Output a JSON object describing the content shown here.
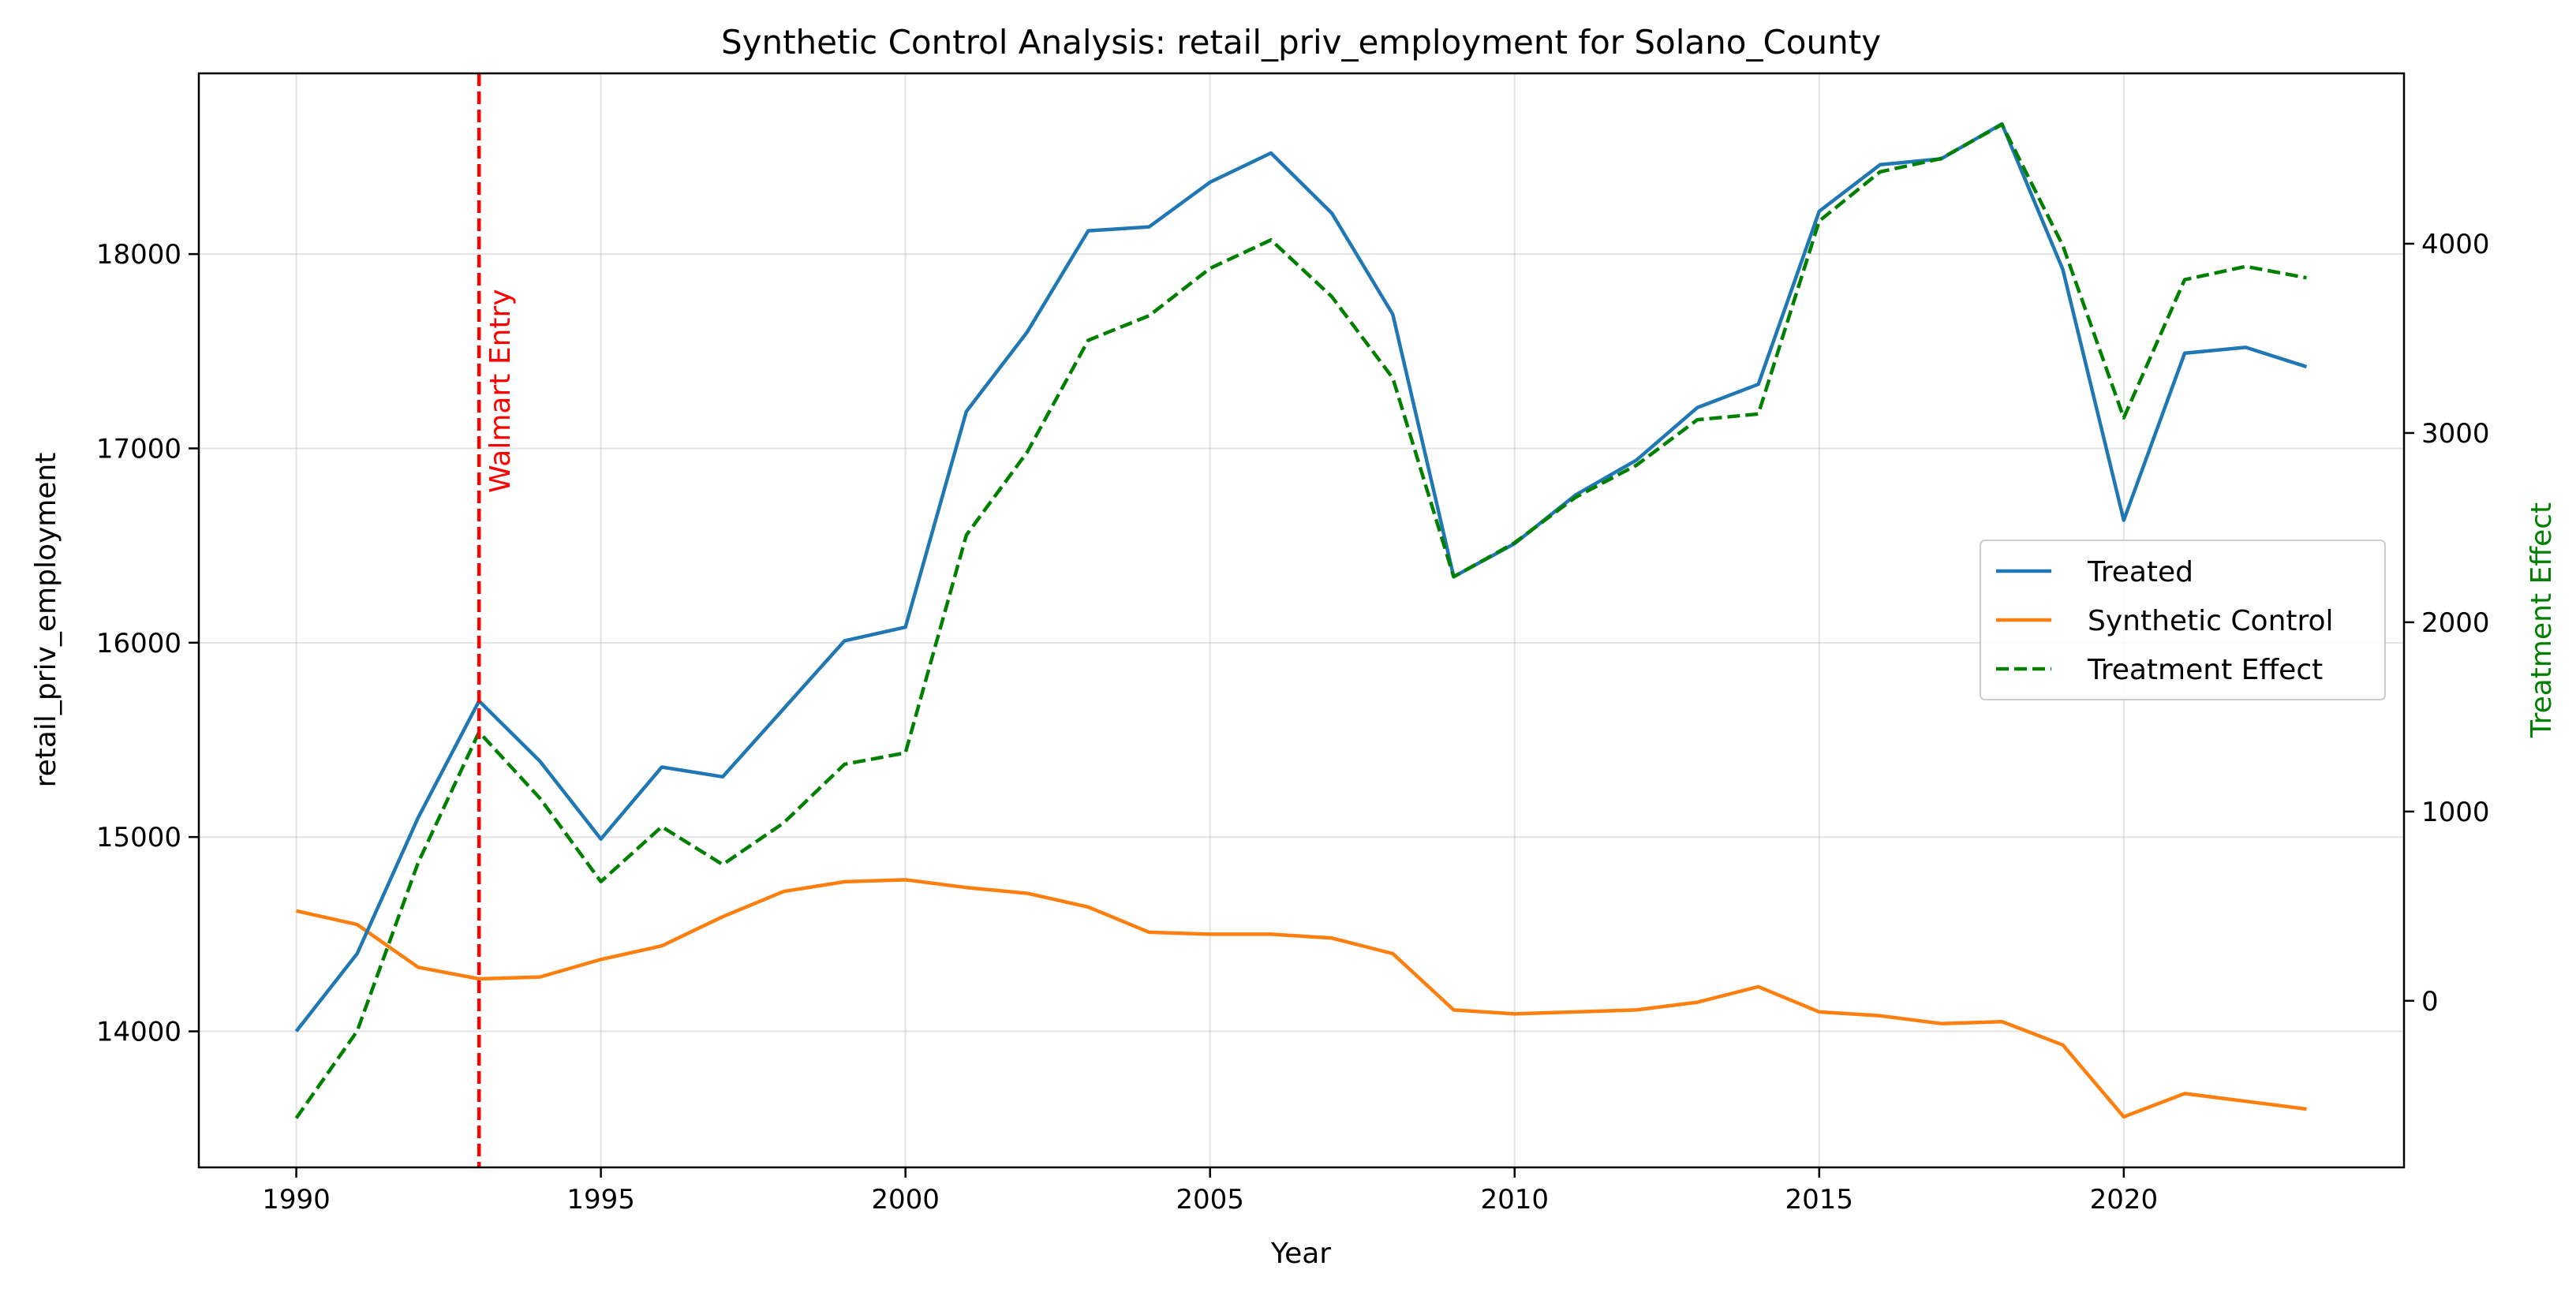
{
  "chart_data": {
    "type": "line",
    "title": "Synthetic Control Analysis: retail_priv_employment for Solano_County",
    "xlabel": "Year",
    "ylabel": "retail_priv_employment",
    "y2label": "Treatment Effect",
    "xlim": [
      1988.4,
      2024.6
    ],
    "ylim": [
      13300,
      18930
    ],
    "y2lim": [
      -880,
      4900
    ],
    "xticks": [
      1990,
      1995,
      2000,
      2005,
      2010,
      2015,
      2020
    ],
    "yticks": [
      14000,
      15000,
      16000,
      17000,
      18000
    ],
    "y2ticks": [
      0,
      1000,
      2000,
      3000,
      4000
    ],
    "grid": true,
    "legend_position": "center-right",
    "x": [
      1990,
      1991,
      1992,
      1993,
      1994,
      1995,
      1996,
      1997,
      1998,
      1999,
      2000,
      2001,
      2002,
      2003,
      2004,
      2005,
      2006,
      2007,
      2008,
      2009,
      2010,
      2011,
      2012,
      2013,
      2014,
      2015,
      2016,
      2017,
      2018,
      2019,
      2020,
      2021,
      2022,
      2023
    ],
    "series": [
      {
        "name": "Treated",
        "axis": "left",
        "style": "solid",
        "color": "#1f77b4",
        "values": [
          14000,
          14400,
          15100,
          15700,
          15390,
          14990,
          15360,
          15310,
          15660,
          16010,
          16080,
          17190,
          17600,
          18120,
          18140,
          18370,
          18520,
          18210,
          17690,
          16340,
          16510,
          16760,
          16940,
          17210,
          17330,
          18220,
          18460,
          18490,
          18670,
          17920,
          16630,
          17490,
          17520,
          17420
        ]
      },
      {
        "name": "Synthetic Control",
        "axis": "left",
        "style": "solid",
        "color": "#ff7f0e",
        "values": [
          14620,
          14550,
          14330,
          14270,
          14280,
          14370,
          14440,
          14590,
          14720,
          14770,
          14780,
          14740,
          14710,
          14640,
          14510,
          14500,
          14500,
          14480,
          14400,
          14110,
          14090,
          14100,
          14110,
          14150,
          14230,
          14100,
          14080,
          14040,
          14050,
          13930,
          13560,
          13680,
          13640,
          13600
        ]
      },
      {
        "name": "Treatment Effect",
        "axis": "right",
        "style": "dashed",
        "color": "#008000",
        "values": [
          -620,
          -160,
          730,
          1420,
          1070,
          630,
          920,
          720,
          940,
          1250,
          1310,
          2460,
          2900,
          3490,
          3620,
          3870,
          4020,
          3720,
          3290,
          2240,
          2420,
          2660,
          2830,
          3070,
          3100,
          4120,
          4380,
          4450,
          4630,
          3990,
          3080,
          3810,
          3880,
          3820
        ]
      }
    ],
    "annotations": [
      {
        "type": "vline",
        "x": 1993,
        "text": "Walmart Entry",
        "color": "#ff0000"
      }
    ]
  }
}
